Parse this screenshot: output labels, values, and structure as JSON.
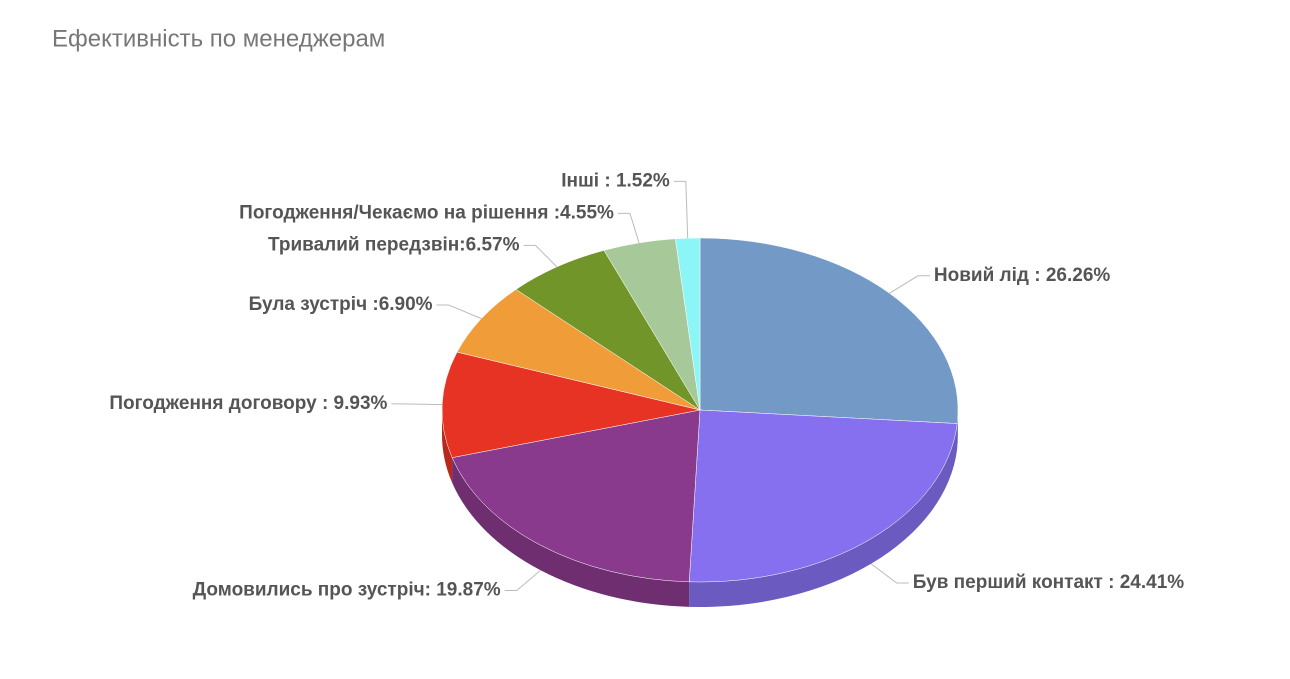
{
  "chart_data": {
    "type": "pie",
    "title": "Ефективність по менеджерам",
    "values": [
      26.26,
      24.41,
      19.87,
      9.93,
      6.9,
      6.57,
      4.55,
      1.52
    ],
    "value_labels": [
      "Новий лід : 26.26%",
      "Був перший контакт : 24.41%",
      "Домовились про зустріч: 19.87%",
      "Погодження договору : 9.93%",
      "Була зустріч :6.90%",
      "Тривалий передзвін:6.57%",
      "Погодження/Чекаємо на рішення :4.55%",
      "Інші : 1.52%"
    ],
    "colors": [
      "#7399c6",
      "#8670f0",
      "#8a3a8c",
      "#e63323",
      "#f09c38",
      "#72952a",
      "#a7c99a",
      "#8cf6f6"
    ]
  }
}
